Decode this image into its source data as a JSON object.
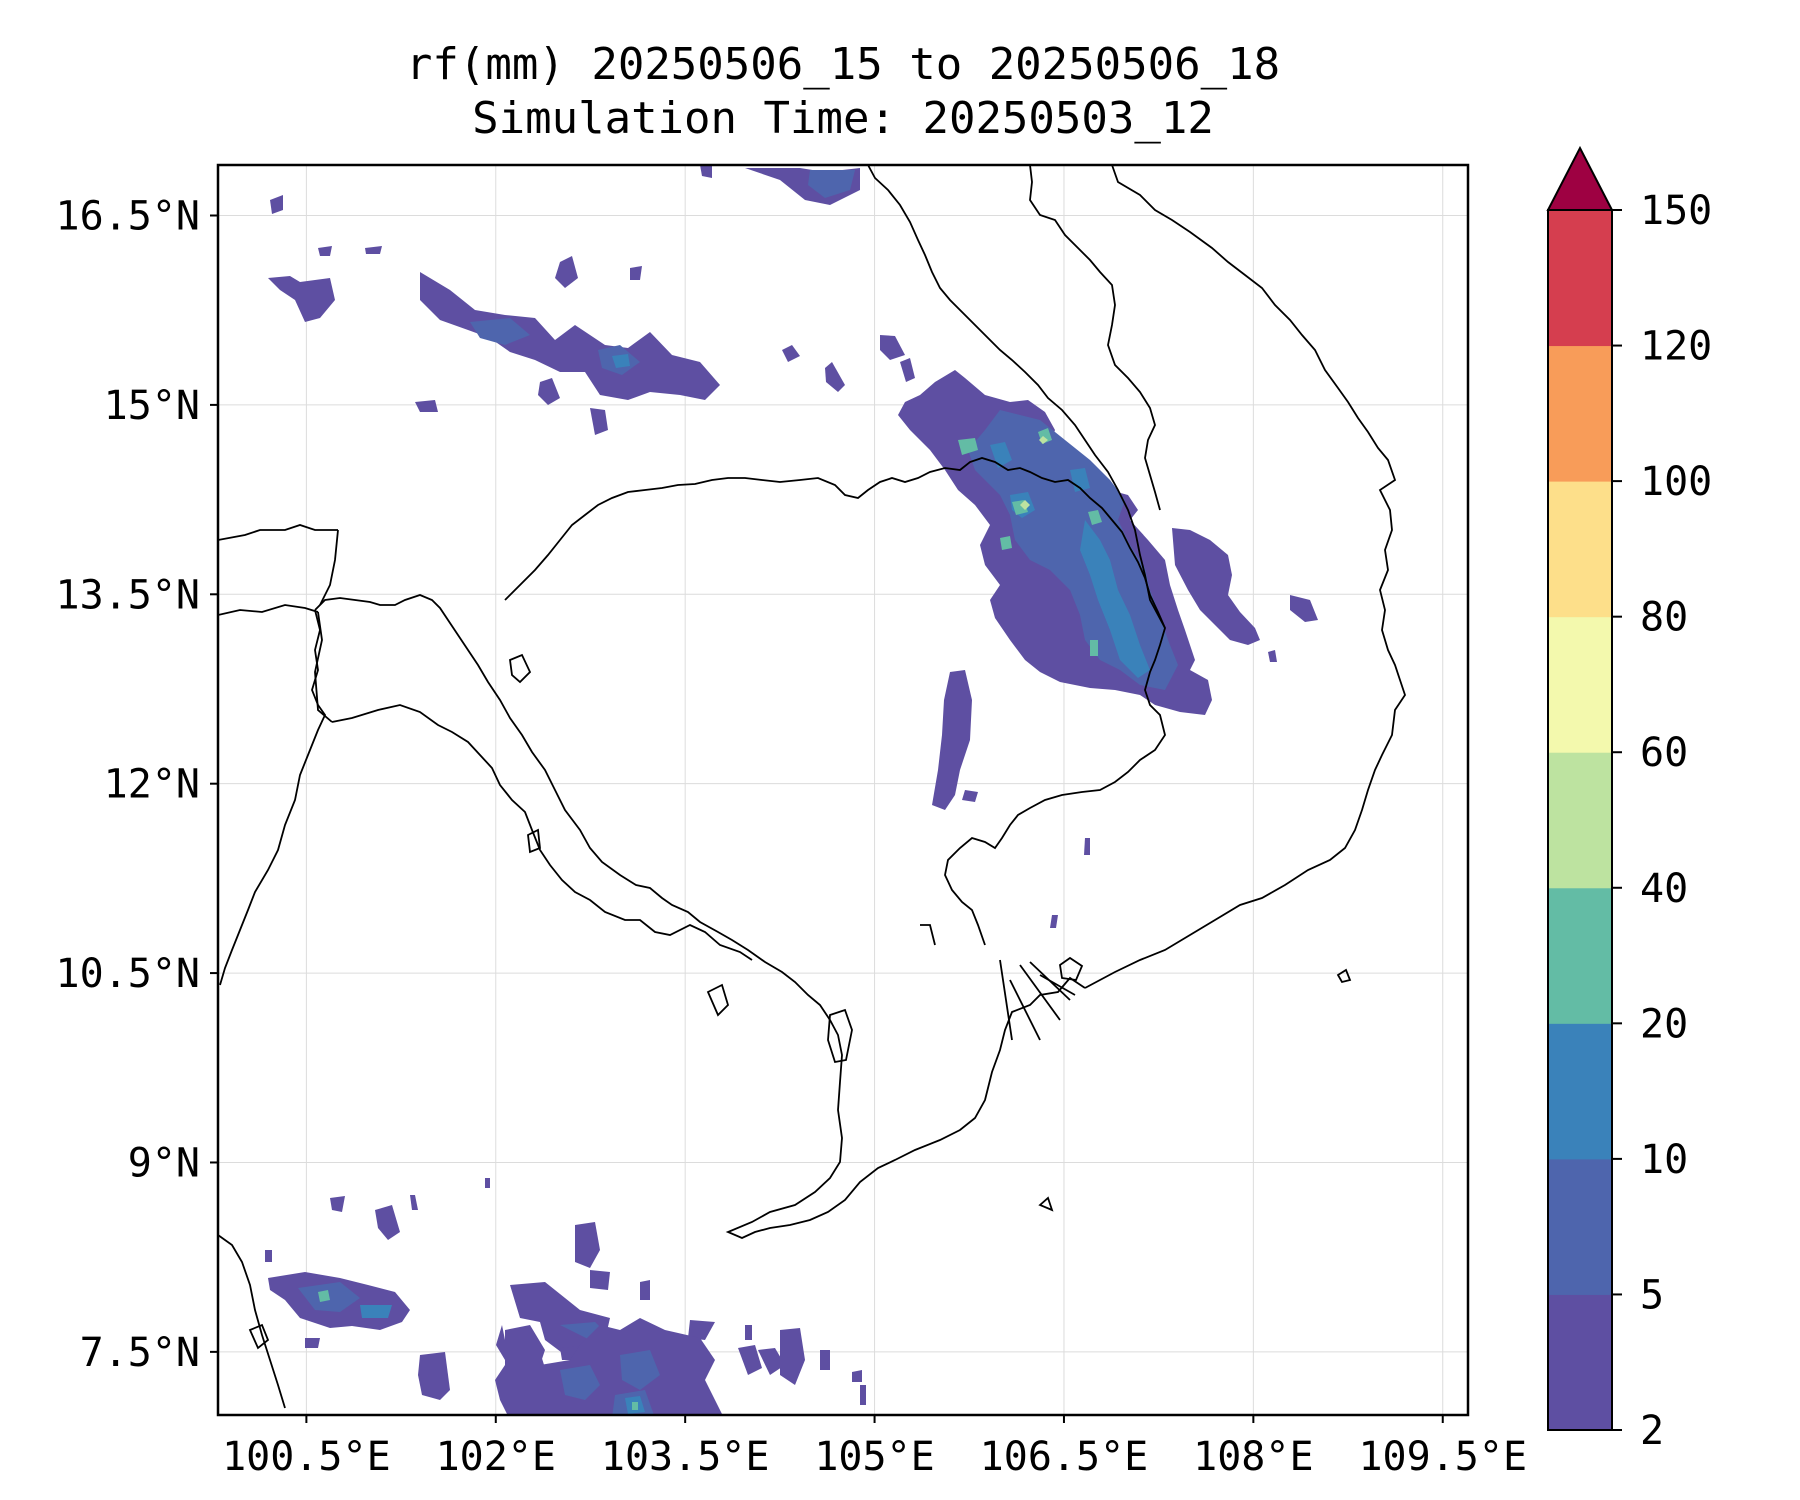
{
  "title": {
    "line1": "rf(mm) 20250506_15 to 20250506_18",
    "line2": "Simulation Time: 20250503_12"
  },
  "map": {
    "lon_range": [
      99.8,
      109.7
    ],
    "lat_range": [
      7.0,
      16.9
    ],
    "lon_ticks": [
      {
        "value": 100.5,
        "label": "100.5°E"
      },
      {
        "value": 102.0,
        "label": "102°E"
      },
      {
        "value": 103.5,
        "label": "103.5°E"
      },
      {
        "value": 105.0,
        "label": "105°E"
      },
      {
        "value": 106.5,
        "label": "106.5°E"
      },
      {
        "value": 108.0,
        "label": "108°E"
      },
      {
        "value": 109.5,
        "label": "109.5°E"
      }
    ],
    "lat_ticks": [
      {
        "value": 16.5,
        "label": "16.5°N"
      },
      {
        "value": 15.0,
        "label": "15°N"
      },
      {
        "value": 13.5,
        "label": "13.5°N"
      },
      {
        "value": 12.0,
        "label": "12°N"
      },
      {
        "value": 10.5,
        "label": "10.5°N"
      },
      {
        "value": 9.0,
        "label": "9°N"
      },
      {
        "value": 7.5,
        "label": "7.5°N"
      }
    ],
    "gridlines": true,
    "coastline_color": "#000000",
    "colorbar": {
      "levels": [
        "2",
        "5",
        "10",
        "20",
        "40",
        "60",
        "80",
        "100",
        "120",
        "150"
      ],
      "colors": [
        "#5e4fa2",
        "#4e65ad",
        "#3a82ba",
        "#63bca5",
        "#bde3a0",
        "#f3f9ad",
        "#fddf8a",
        "#f89c59",
        "#d53e4f"
      ],
      "extend_color": "#9e0142",
      "extend": "max"
    }
  }
}
